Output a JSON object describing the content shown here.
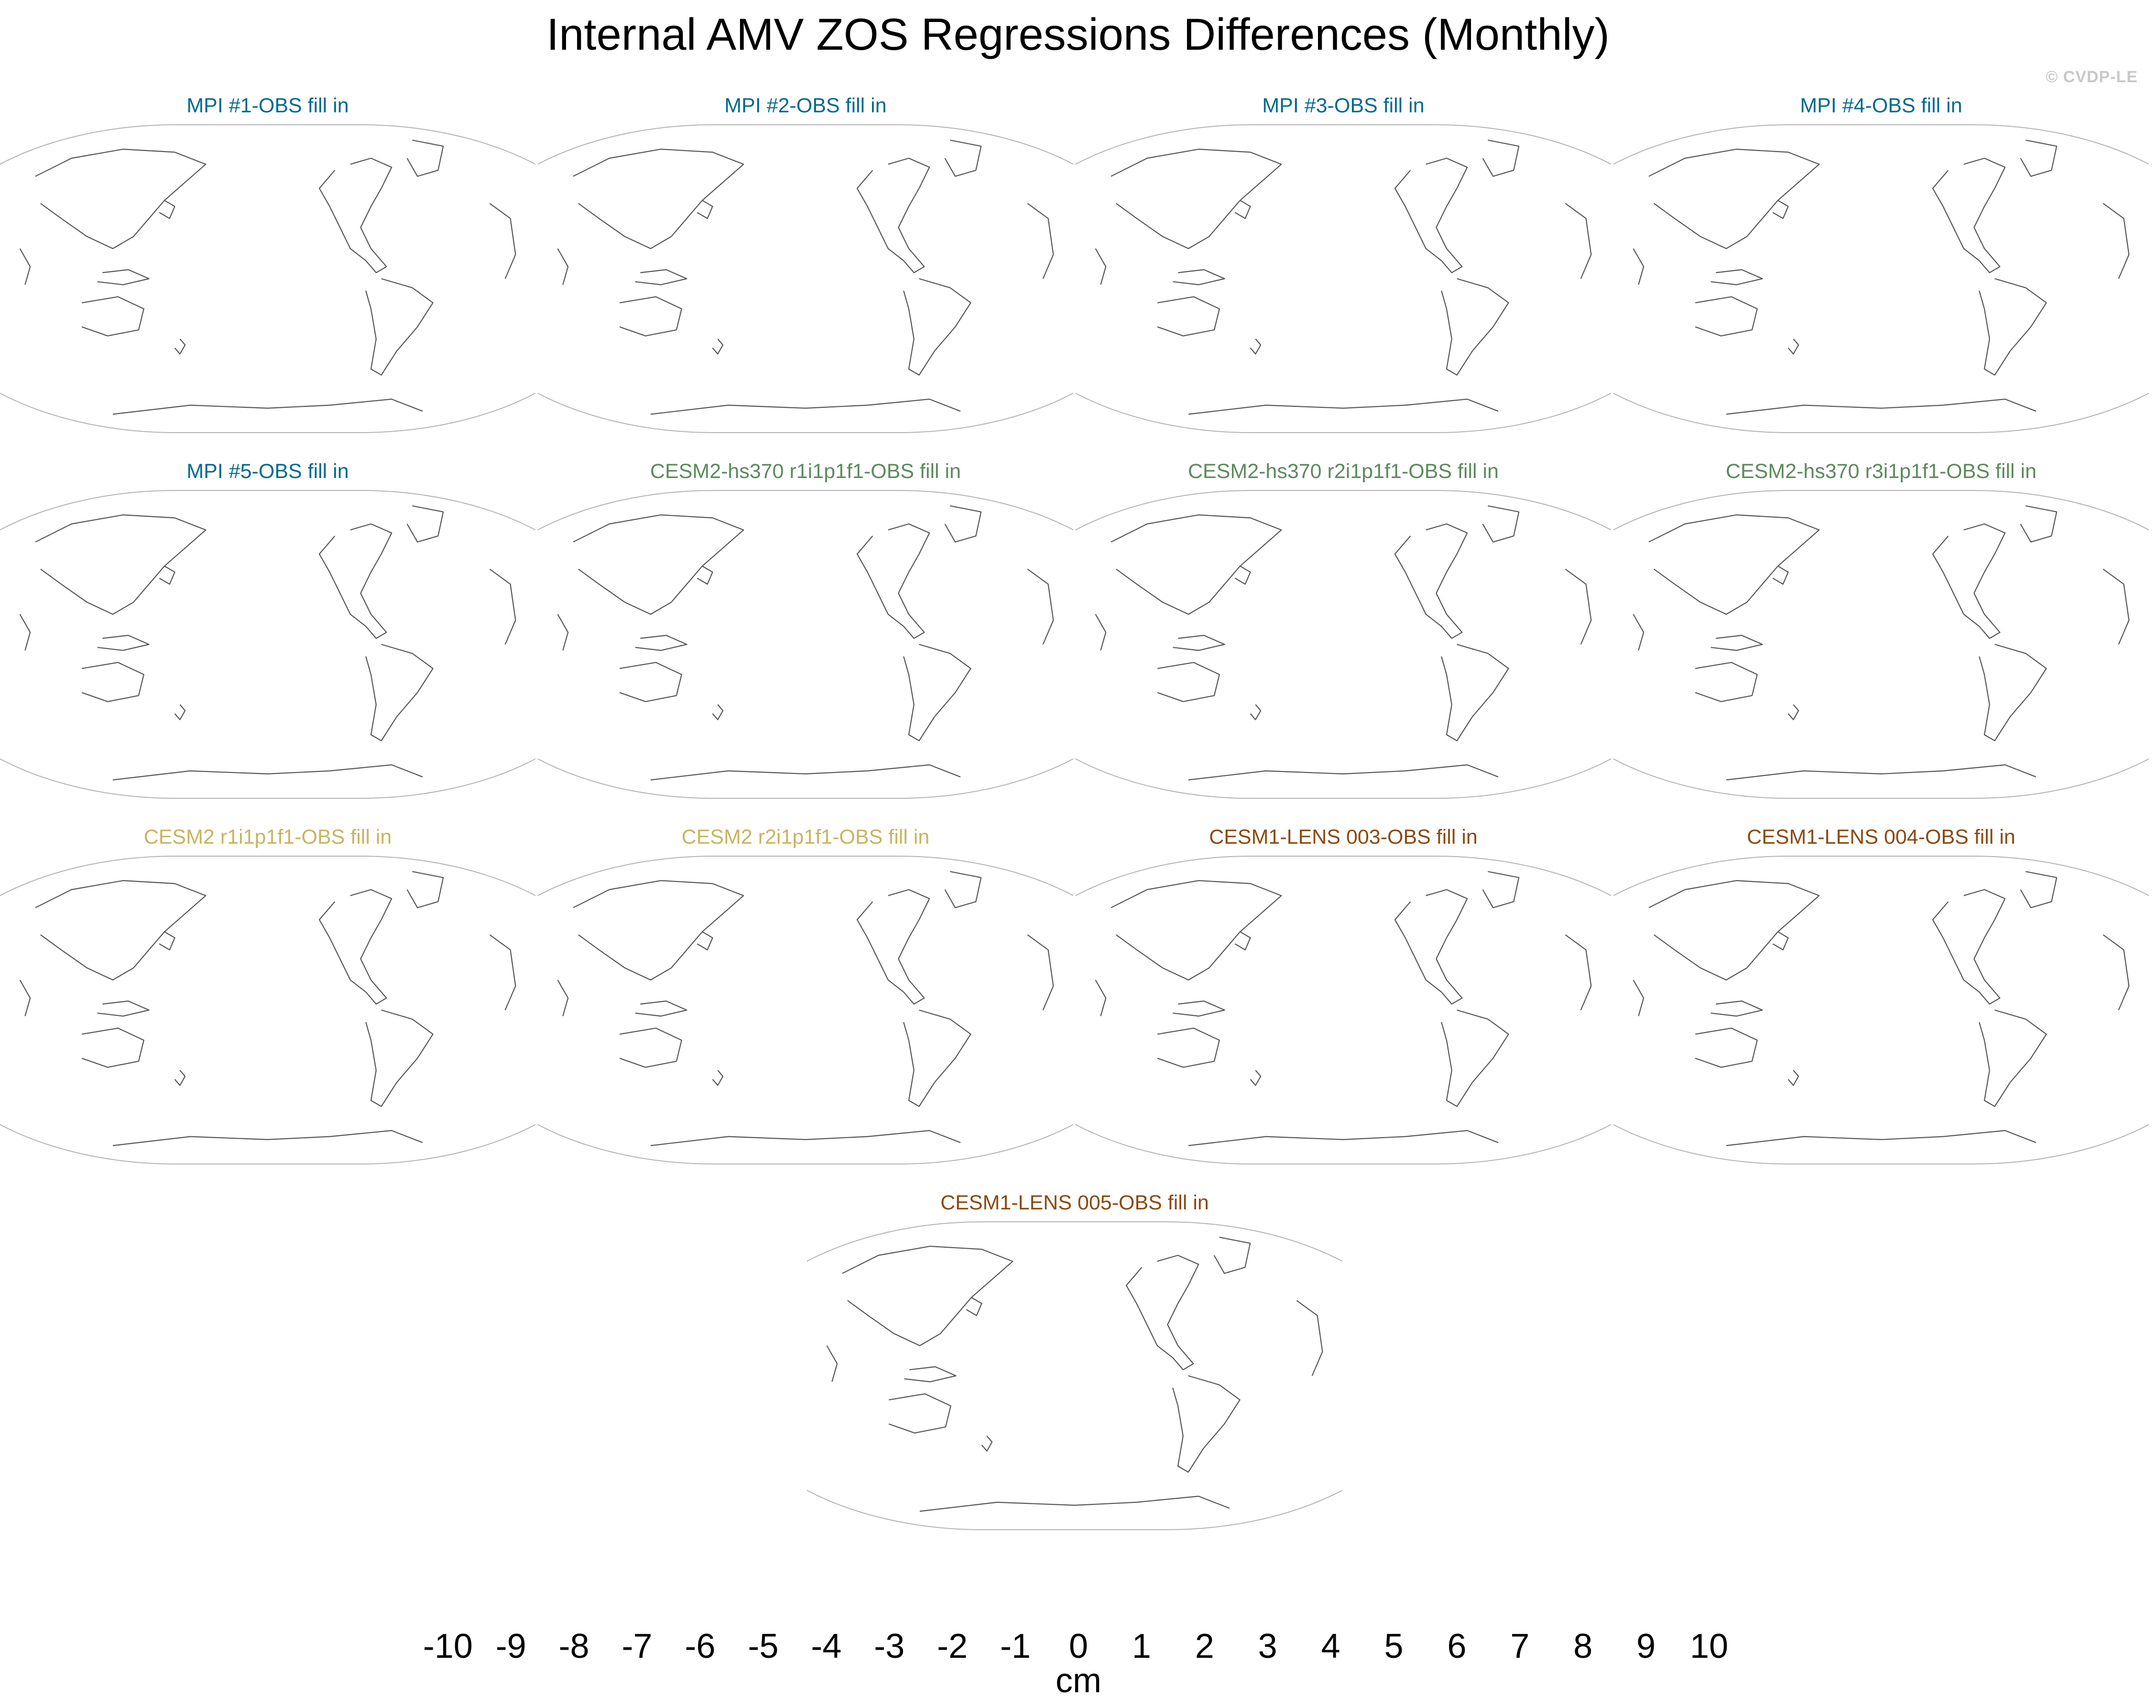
{
  "title": "Internal AMV ZOS Regressions Differences (Monthly)",
  "credit": "© CVDP-LE",
  "panels": [
    {
      "title": "MPI #1-OBS fill in",
      "color": "#006a8f"
    },
    {
      "title": "MPI #2-OBS fill in",
      "color": "#006a8f"
    },
    {
      "title": "MPI #3-OBS fill in",
      "color": "#006a8f"
    },
    {
      "title": "MPI #4-OBS fill in",
      "color": "#006a8f"
    },
    {
      "title": "MPI #5-OBS fill in",
      "color": "#006a8f"
    },
    {
      "title": "CESM2-hs370 r1i1p1f1-OBS fill in",
      "color": "#5c8a5c"
    },
    {
      "title": "CESM2-hs370 r2i1p1f1-OBS fill in",
      "color": "#5c8a5c"
    },
    {
      "title": "CESM2-hs370 r3i1p1f1-OBS fill in",
      "color": "#5c8a5c"
    },
    {
      "title": "CESM2 r1i1p1f1-OBS fill in",
      "color": "#c8b460"
    },
    {
      "title": "CESM2 r2i1p1f1-OBS fill in",
      "color": "#c8b460"
    },
    {
      "title": "CESM1-LENS 003-OBS fill in",
      "color": "#8a4a0f"
    },
    {
      "title": "CESM1-LENS 004-OBS fill in",
      "color": "#8a4a0f"
    },
    {
      "title": "CESM1-LENS 005-OBS fill in",
      "color": "#8a4a0f"
    }
  ],
  "colorbar": {
    "label": "cm",
    "ticks": [
      "-10",
      "-9",
      "-8",
      "-7",
      "-6",
      "-5",
      "-4",
      "-3",
      "-2",
      "-1",
      "0",
      "1",
      "2",
      "3",
      "4",
      "5",
      "6",
      "7",
      "8",
      "9",
      "10"
    ],
    "colors": [
      "#8722ee",
      "#4e1cf5",
      "#1212f5",
      "#3346ea",
      "#386ae6",
      "#2887f5",
      "#17a2f5",
      "#04c2f7",
      "#5bc6f2",
      "#98cfec",
      "#bde0f3",
      "#fff99a",
      "#fee44a",
      "#fcc722",
      "#fbaa0c",
      "#fb8a05",
      "#fb5a05",
      "#fc2404",
      "#ee0503",
      "#cc0303",
      "#dd4444",
      "#fdb3b3"
    ]
  }
}
